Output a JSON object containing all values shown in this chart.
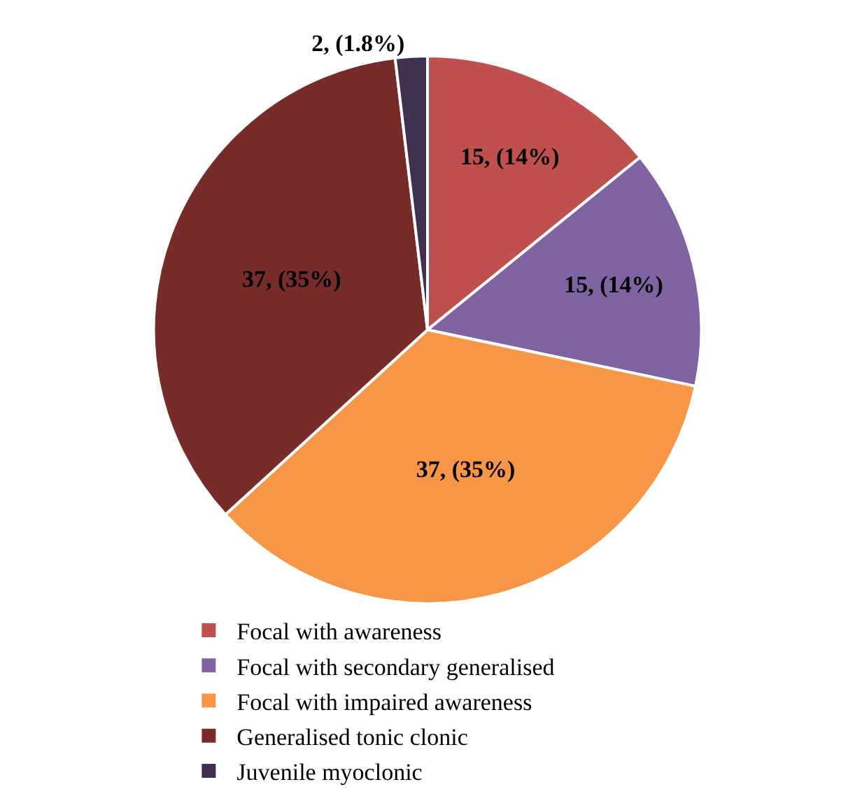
{
  "chart_data": {
    "type": "pie",
    "categories": [
      "Focal with awareness",
      "Focal with secondary generalised",
      "Focal with impaired awareness",
      "Generalised tonic clonic",
      "Juvenile myoclonic"
    ],
    "values": [
      15,
      15,
      37,
      37,
      2
    ],
    "colors": [
      "#c0504d",
      "#8064a2",
      "#f79646",
      "#772c2a",
      "#403151"
    ],
    "value_labels": [
      "15, (14%)",
      "15, (14%)",
      "37, (35%)",
      "37, (35%)",
      "2, (1.8%)"
    ],
    "legend": "bottom"
  }
}
